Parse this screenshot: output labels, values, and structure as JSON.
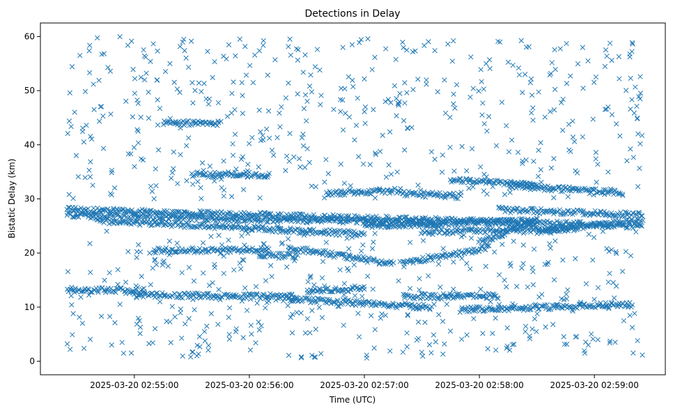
{
  "chart_data": {
    "type": "scatter",
    "title": "Detections in Delay",
    "xlabel": "Time (UTC)",
    "ylabel": "Bistatic Delay (km)",
    "xlim": [
      "2025-03-20 02:54:11",
      "2025-03-20 02:59:37"
    ],
    "ylim": [
      -2.5,
      62.5
    ],
    "x_ticks": [
      "2025-03-20 02:55:00",
      "2025-03-20 02:56:00",
      "2025-03-20 02:57:00",
      "2025-03-20 02:58:00",
      "2025-03-20 02:59:00"
    ],
    "y_ticks": [
      0,
      10,
      20,
      30,
      40,
      50,
      60
    ],
    "marker": "x",
    "color": "#1f77b4",
    "grid": false,
    "legend": "none",
    "tracks": [
      {
        "start": "2025-03-20 02:54:25",
        "end": "2025-03-20 02:59:25",
        "y_start": 28,
        "y_end": 25
      },
      {
        "start": "2025-03-20 02:54:25",
        "end": "2025-03-20 02:57:40",
        "y_start": 27,
        "y_end": 25.5
      },
      {
        "start": "2025-03-20 02:54:40",
        "end": "2025-03-20 02:57:00",
        "y_start": 26,
        "y_end": 23.5
      },
      {
        "start": "2025-03-20 02:57:00",
        "end": "2025-03-20 02:58:30",
        "y_start": 25,
        "y_end": 26
      },
      {
        "start": "2025-03-20 02:57:30",
        "end": "2025-03-20 02:58:50",
        "y_start": 24,
        "y_end": 24.5
      },
      {
        "start": "2025-03-20 02:58:30",
        "end": "2025-03-20 02:59:25",
        "y_start": 24,
        "y_end": 26
      },
      {
        "start": "2025-03-20 02:58:10",
        "end": "2025-03-20 02:59:25",
        "y_start": 28,
        "y_end": 27
      },
      {
        "start": "2025-03-20 02:54:25",
        "end": "2025-03-20 02:55:05",
        "y_start": 13.2,
        "y_end": 13
      },
      {
        "start": "2025-03-20 02:55:00",
        "end": "2025-03-20 02:56:25",
        "y_start": 12.2,
        "y_end": 12
      },
      {
        "start": "2025-03-20 02:56:20",
        "end": "2025-03-20 02:57:35",
        "y_start": 11.5,
        "y_end": 10
      },
      {
        "start": "2025-03-20 02:57:20",
        "end": "2025-03-20 02:58:10",
        "y_start": 12,
        "y_end": 12
      },
      {
        "start": "2025-03-20 02:57:50",
        "end": "2025-03-20 02:59:20",
        "y_start": 9.5,
        "y_end": 10.5
      },
      {
        "start": "2025-03-20 02:56:30",
        "end": "2025-03-20 02:57:00",
        "y_start": 13,
        "y_end": 13.5
      },
      {
        "start": "2025-03-20 02:55:10",
        "end": "2025-03-20 02:56:10",
        "y_start": 20.5,
        "y_end": 20.5
      },
      {
        "start": "2025-03-20 02:56:20",
        "end": "2025-03-20 02:57:15",
        "y_start": 21,
        "y_end": 18
      },
      {
        "start": "2025-03-20 02:57:20",
        "end": "2025-03-20 02:58:05",
        "y_start": 18,
        "y_end": 21
      },
      {
        "start": "2025-03-20 02:58:00",
        "end": "2025-03-20 02:58:30",
        "y_start": 22,
        "y_end": 26
      },
      {
        "start": "2025-03-20 02:55:30",
        "end": "2025-03-20 02:56:10",
        "y_start": 34.5,
        "y_end": 34.5
      },
      {
        "start": "2025-03-20 02:56:40",
        "end": "2025-03-20 02:57:20",
        "y_start": 31,
        "y_end": 31.5
      },
      {
        "start": "2025-03-20 02:57:20",
        "end": "2025-03-20 02:57:50",
        "y_start": 31,
        "y_end": 30.5
      },
      {
        "start": "2025-03-20 02:57:45",
        "end": "2025-03-20 02:58:30",
        "y_start": 33.5,
        "y_end": 32.5
      },
      {
        "start": "2025-03-20 02:58:15",
        "end": "2025-03-20 02:59:15",
        "y_start": 32.5,
        "y_end": 31
      },
      {
        "start": "2025-03-20 02:55:15",
        "end": "2025-03-20 02:55:45",
        "y_start": 44,
        "y_end": 44
      },
      {
        "start": "2025-03-20 02:56:05",
        "end": "2025-03-20 02:56:25",
        "y_start": 19.5,
        "y_end": 19.5
      }
    ]
  }
}
